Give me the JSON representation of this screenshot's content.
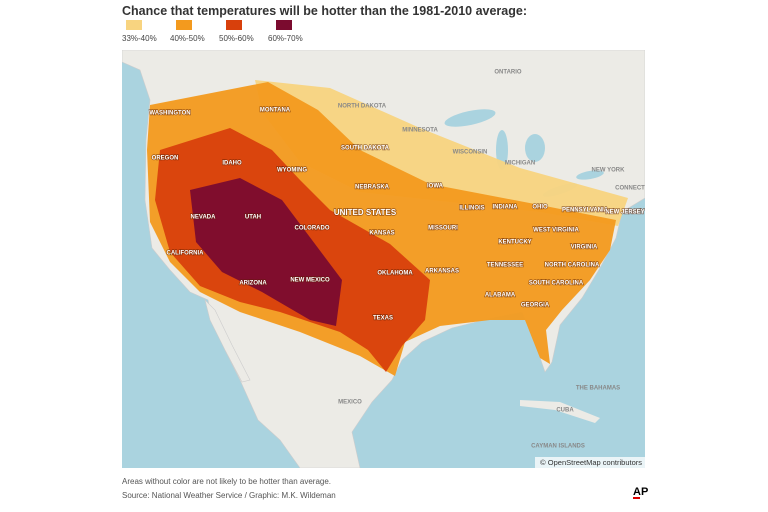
{
  "title": "Chance that temperatures will be hotter than the 1981-2010 average:",
  "legend": [
    {
      "label": "33%-40%",
      "color": "#f8d480"
    },
    {
      "label": "40%-50%",
      "color": "#f39a1e"
    },
    {
      "label": "50%-60%",
      "color": "#d8400c"
    },
    {
      "label": "60%-70%",
      "color": "#7b0b2f"
    }
  ],
  "labels": [
    "ONTARIO",
    "NORTH DAKOTA",
    "MINNESOTA",
    "WASHINGTON",
    "MONTANA",
    "OREGON",
    "IDAHO",
    "WYOMING",
    "SOUTH DAKOTA",
    "WISCONSIN",
    "MICHIGAN",
    "NEW YORK",
    "CONNECT",
    "NEBRASKA",
    "IOWA",
    "NEVADA",
    "UTAH",
    "UNITED STATES",
    "COLORADO",
    "KANSAS",
    "ILLINOIS",
    "INDIANA",
    "OHIO",
    "PENNSYLVANIA",
    "NEW JERSEY",
    "CALIFORNIA",
    "MISSOURI",
    "WEST VIRGINIA",
    "VIRGINIA",
    "KENTUCKY",
    "TENNESSEE",
    "NORTH CAROLINA",
    "ARIZONA",
    "NEW MEXICO",
    "OKLAHOMA",
    "ARKANSAS",
    "SOUTH CAROLINA",
    "ALABAMA",
    "GEORGIA",
    "TEXAS",
    "THE BAHAMAS",
    "MEXICO",
    "CUBA",
    "CAYMAN ISLANDS"
  ],
  "attribution": "© OpenStreetMap contributors",
  "footnote": "Areas without color are not likely to be hotter than average.",
  "source": "Source: National Weather Service / Graphic: M.K. Wildeman",
  "logo": "AP"
}
